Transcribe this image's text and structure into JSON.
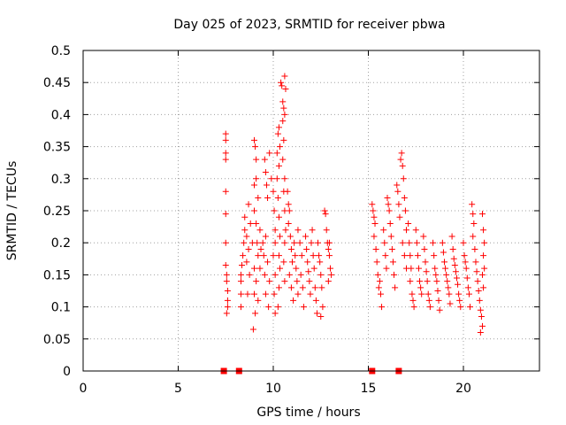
{
  "chart_data": {
    "type": "scatter",
    "title": "Day 025 of 2023, SRMTID for receiver pbwa",
    "xlabel": "GPS time / hours",
    "ylabel": "SRMTID / TECUs",
    "xlim": [
      0,
      24
    ],
    "ylim": [
      0,
      0.5
    ],
    "x_ticks": [
      0,
      5,
      10,
      15,
      20
    ],
    "y_ticks": [
      0,
      0.05,
      0.1,
      0.15,
      0.2,
      0.25,
      0.3,
      0.35,
      0.4,
      0.45,
      0.5
    ],
    "x_tick_labels": [
      "0",
      "5",
      "10",
      "15",
      "20"
    ],
    "y_tick_labels": [
      "0",
      "0.05",
      "0.1",
      "0.15",
      "0.2",
      "0.25",
      "0.3",
      "0.35",
      "0.4",
      "0.45",
      "0.5"
    ],
    "grid": true,
    "marker": "+",
    "color": "#ff0000",
    "series": [
      {
        "name": "SRMTID",
        "points": [
          [
            7.5,
            0.37
          ],
          [
            7.5,
            0.36
          ],
          [
            7.5,
            0.34
          ],
          [
            7.5,
            0.33
          ],
          [
            7.5,
            0.28
          ],
          [
            7.5,
            0.245
          ],
          [
            7.5,
            0.2
          ],
          [
            7.5,
            0.165
          ],
          [
            7.55,
            0.15
          ],
          [
            7.55,
            0.14
          ],
          [
            7.6,
            0.125
          ],
          [
            7.6,
            0.11
          ],
          [
            7.6,
            0.1
          ],
          [
            7.55,
            0.09
          ],
          [
            8.3,
            0.15
          ],
          [
            8.3,
            0.14
          ],
          [
            8.3,
            0.12
          ],
          [
            8.3,
            0.1
          ],
          [
            8.35,
            0.165
          ],
          [
            8.4,
            0.18
          ],
          [
            8.45,
            0.2
          ],
          [
            8.5,
            0.22
          ],
          [
            8.6,
            0.21
          ],
          [
            8.7,
            0.19
          ],
          [
            8.5,
            0.24
          ],
          [
            8.7,
            0.26
          ],
          [
            8.8,
            0.23
          ],
          [
            8.9,
            0.2
          ],
          [
            8.6,
            0.17
          ],
          [
            8.75,
            0.15
          ],
          [
            8.65,
            0.12
          ],
          [
            9.0,
            0.36
          ],
          [
            9.05,
            0.35
          ],
          [
            9.1,
            0.33
          ],
          [
            9.0,
            0.29
          ],
          [
            9.1,
            0.3
          ],
          [
            9.2,
            0.27
          ],
          [
            9.0,
            0.25
          ],
          [
            9.1,
            0.23
          ],
          [
            9.15,
            0.2
          ],
          [
            9.2,
            0.18
          ],
          [
            9.0,
            0.16
          ],
          [
            9.1,
            0.14
          ],
          [
            9.0,
            0.12
          ],
          [
            9.05,
            0.09
          ],
          [
            8.95,
            0.065
          ],
          [
            9.2,
            0.11
          ],
          [
            9.3,
            0.22
          ],
          [
            9.35,
            0.19
          ],
          [
            9.3,
            0.16
          ],
          [
            9.45,
            0.2
          ],
          [
            9.5,
            0.18
          ],
          [
            9.55,
            0.15
          ],
          [
            9.6,
            0.21
          ],
          [
            9.7,
            0.17
          ],
          [
            9.8,
            0.14
          ],
          [
            9.6,
            0.12
          ],
          [
            9.75,
            0.1
          ],
          [
            9.55,
            0.33
          ],
          [
            9.6,
            0.31
          ],
          [
            9.65,
            0.29
          ],
          [
            9.7,
            0.27
          ],
          [
            9.8,
            0.34
          ],
          [
            9.9,
            0.3
          ],
          [
            10.0,
            0.28
          ],
          [
            10.05,
            0.25
          ],
          [
            10.1,
            0.22
          ],
          [
            10.1,
            0.2
          ],
          [
            10.0,
            0.18
          ],
          [
            10.1,
            0.15
          ],
          [
            10.05,
            0.12
          ],
          [
            10.1,
            0.09
          ],
          [
            10.2,
            0.34
          ],
          [
            10.25,
            0.37
          ],
          [
            10.3,
            0.38
          ],
          [
            10.35,
            0.35
          ],
          [
            10.3,
            0.32
          ],
          [
            10.2,
            0.3
          ],
          [
            10.25,
            0.27
          ],
          [
            10.3,
            0.24
          ],
          [
            10.35,
            0.21
          ],
          [
            10.3,
            0.18
          ],
          [
            10.35,
            0.16
          ],
          [
            10.3,
            0.13
          ],
          [
            10.25,
            0.1
          ],
          [
            10.4,
            0.45
          ],
          [
            10.45,
            0.445
          ],
          [
            10.5,
            0.42
          ],
          [
            10.55,
            0.41
          ],
          [
            10.6,
            0.46
          ],
          [
            10.65,
            0.44
          ],
          [
            10.5,
            0.39
          ],
          [
            10.6,
            0.4
          ],
          [
            10.55,
            0.36
          ],
          [
            10.5,
            0.33
          ],
          [
            10.6,
            0.3
          ],
          [
            10.55,
            0.28
          ],
          [
            10.6,
            0.25
          ],
          [
            10.65,
            0.22
          ],
          [
            10.6,
            0.2
          ],
          [
            10.55,
            0.17
          ],
          [
            10.6,
            0.14
          ],
          [
            10.75,
            0.28
          ],
          [
            10.8,
            0.26
          ],
          [
            10.85,
            0.25
          ],
          [
            10.8,
            0.23
          ],
          [
            10.9,
            0.21
          ],
          [
            10.95,
            0.19
          ],
          [
            11.0,
            0.17
          ],
          [
            10.85,
            0.15
          ],
          [
            10.95,
            0.13
          ],
          [
            11.05,
            0.11
          ],
          [
            11.1,
            0.2
          ],
          [
            11.15,
            0.18
          ],
          [
            11.2,
            0.16
          ],
          [
            11.25,
            0.14
          ],
          [
            11.3,
            0.12
          ],
          [
            11.3,
            0.22
          ],
          [
            11.4,
            0.2
          ],
          [
            11.5,
            0.18
          ],
          [
            11.45,
            0.15
          ],
          [
            11.55,
            0.13
          ],
          [
            11.6,
            0.1
          ],
          [
            11.7,
            0.21
          ],
          [
            11.75,
            0.19
          ],
          [
            11.8,
            0.17
          ],
          [
            11.85,
            0.155
          ],
          [
            11.9,
            0.14
          ],
          [
            11.95,
            0.12
          ],
          [
            12.0,
            0.2
          ],
          [
            12.05,
            0.22
          ],
          [
            12.1,
            0.18
          ],
          [
            12.15,
            0.16
          ],
          [
            12.2,
            0.13
          ],
          [
            12.25,
            0.11
          ],
          [
            12.3,
            0.09
          ],
          [
            12.35,
            0.2
          ],
          [
            12.4,
            0.18
          ],
          [
            12.45,
            0.17
          ],
          [
            12.5,
            0.15
          ],
          [
            12.55,
            0.13
          ],
          [
            12.6,
            0.1
          ],
          [
            12.5,
            0.085
          ],
          [
            12.7,
            0.25
          ],
          [
            12.75,
            0.245
          ],
          [
            12.8,
            0.22
          ],
          [
            12.85,
            0.2
          ],
          [
            12.9,
            0.19
          ],
          [
            12.95,
            0.18
          ],
          [
            13.0,
            0.16
          ],
          [
            13.05,
            0.15
          ],
          [
            12.9,
            0.14
          ],
          [
            12.95,
            0.2
          ],
          [
            15.2,
            0.26
          ],
          [
            15.25,
            0.25
          ],
          [
            15.3,
            0.24
          ],
          [
            15.35,
            0.23
          ],
          [
            15.3,
            0.21
          ],
          [
            15.4,
            0.19
          ],
          [
            15.45,
            0.17
          ],
          [
            15.5,
            0.15
          ],
          [
            15.55,
            0.13
          ],
          [
            15.6,
            0.14
          ],
          [
            15.65,
            0.12
          ],
          [
            15.7,
            0.1
          ],
          [
            15.8,
            0.22
          ],
          [
            15.85,
            0.2
          ],
          [
            15.9,
            0.18
          ],
          [
            15.95,
            0.16
          ],
          [
            16.0,
            0.27
          ],
          [
            16.05,
            0.26
          ],
          [
            16.1,
            0.25
          ],
          [
            16.15,
            0.23
          ],
          [
            16.2,
            0.21
          ],
          [
            16.25,
            0.19
          ],
          [
            16.3,
            0.17
          ],
          [
            16.35,
            0.15
          ],
          [
            16.4,
            0.13
          ],
          [
            16.5,
            0.29
          ],
          [
            16.55,
            0.28
          ],
          [
            16.6,
            0.26
          ],
          [
            16.65,
            0.24
          ],
          [
            16.7,
            0.33
          ],
          [
            16.75,
            0.34
          ],
          [
            16.8,
            0.32
          ],
          [
            16.85,
            0.3
          ],
          [
            16.9,
            0.27
          ],
          [
            16.95,
            0.25
          ],
          [
            17.0,
            0.22
          ],
          [
            16.8,
            0.2
          ],
          [
            16.9,
            0.18
          ],
          [
            17.0,
            0.16
          ],
          [
            17.1,
            0.23
          ],
          [
            17.15,
            0.2
          ],
          [
            17.2,
            0.18
          ],
          [
            17.25,
            0.16
          ],
          [
            17.3,
            0.12
          ],
          [
            17.35,
            0.11
          ],
          [
            17.4,
            0.1
          ],
          [
            17.2,
            0.14
          ],
          [
            17.5,
            0.22
          ],
          [
            17.55,
            0.2
          ],
          [
            17.6,
            0.18
          ],
          [
            17.65,
            0.16
          ],
          [
            17.7,
            0.14
          ],
          [
            17.75,
            0.13
          ],
          [
            17.8,
            0.12
          ],
          [
            17.9,
            0.21
          ],
          [
            17.95,
            0.19
          ],
          [
            18.0,
            0.17
          ],
          [
            18.05,
            0.155
          ],
          [
            18.1,
            0.14
          ],
          [
            18.15,
            0.12
          ],
          [
            18.2,
            0.11
          ],
          [
            18.25,
            0.1
          ],
          [
            18.4,
            0.2
          ],
          [
            18.45,
            0.18
          ],
          [
            18.5,
            0.16
          ],
          [
            18.55,
            0.15
          ],
          [
            18.6,
            0.14
          ],
          [
            18.65,
            0.125
          ],
          [
            18.7,
            0.11
          ],
          [
            18.75,
            0.095
          ],
          [
            18.9,
            0.2
          ],
          [
            18.95,
            0.185
          ],
          [
            19.0,
            0.17
          ],
          [
            19.05,
            0.16
          ],
          [
            19.1,
            0.15
          ],
          [
            19.15,
            0.14
          ],
          [
            19.2,
            0.13
          ],
          [
            19.25,
            0.12
          ],
          [
            19.3,
            0.105
          ],
          [
            19.4,
            0.21
          ],
          [
            19.45,
            0.19
          ],
          [
            19.5,
            0.175
          ],
          [
            19.55,
            0.165
          ],
          [
            19.6,
            0.155
          ],
          [
            19.65,
            0.145
          ],
          [
            19.7,
            0.135
          ],
          [
            19.75,
            0.12
          ],
          [
            19.8,
            0.11
          ],
          [
            19.85,
            0.1
          ],
          [
            20.0,
            0.2
          ],
          [
            20.05,
            0.18
          ],
          [
            20.1,
            0.17
          ],
          [
            20.15,
            0.16
          ],
          [
            20.2,
            0.145
          ],
          [
            20.25,
            0.13
          ],
          [
            20.3,
            0.12
          ],
          [
            20.35,
            0.1
          ],
          [
            20.45,
            0.26
          ],
          [
            20.5,
            0.245
          ],
          [
            20.55,
            0.23
          ],
          [
            20.5,
            0.21
          ],
          [
            20.6,
            0.19
          ],
          [
            20.65,
            0.17
          ],
          [
            20.7,
            0.155
          ],
          [
            20.75,
            0.14
          ],
          [
            20.8,
            0.125
          ],
          [
            20.85,
            0.11
          ],
          [
            20.9,
            0.095
          ],
          [
            20.95,
            0.085
          ],
          [
            20.9,
            0.06
          ],
          [
            21.0,
            0.245
          ],
          [
            21.05,
            0.22
          ],
          [
            21.1,
            0.2
          ],
          [
            21.05,
            0.18
          ],
          [
            21.1,
            0.16
          ],
          [
            21.0,
            0.15
          ],
          [
            21.05,
            0.13
          ],
          [
            21.0,
            0.07
          ]
        ]
      }
    ],
    "axis_markers": [
      {
        "x": 7.4,
        "y": 0
      },
      {
        "x": 8.2,
        "y": 0
      },
      {
        "x": 15.2,
        "y": 0
      },
      {
        "x": 16.6,
        "y": 0
      }
    ]
  }
}
